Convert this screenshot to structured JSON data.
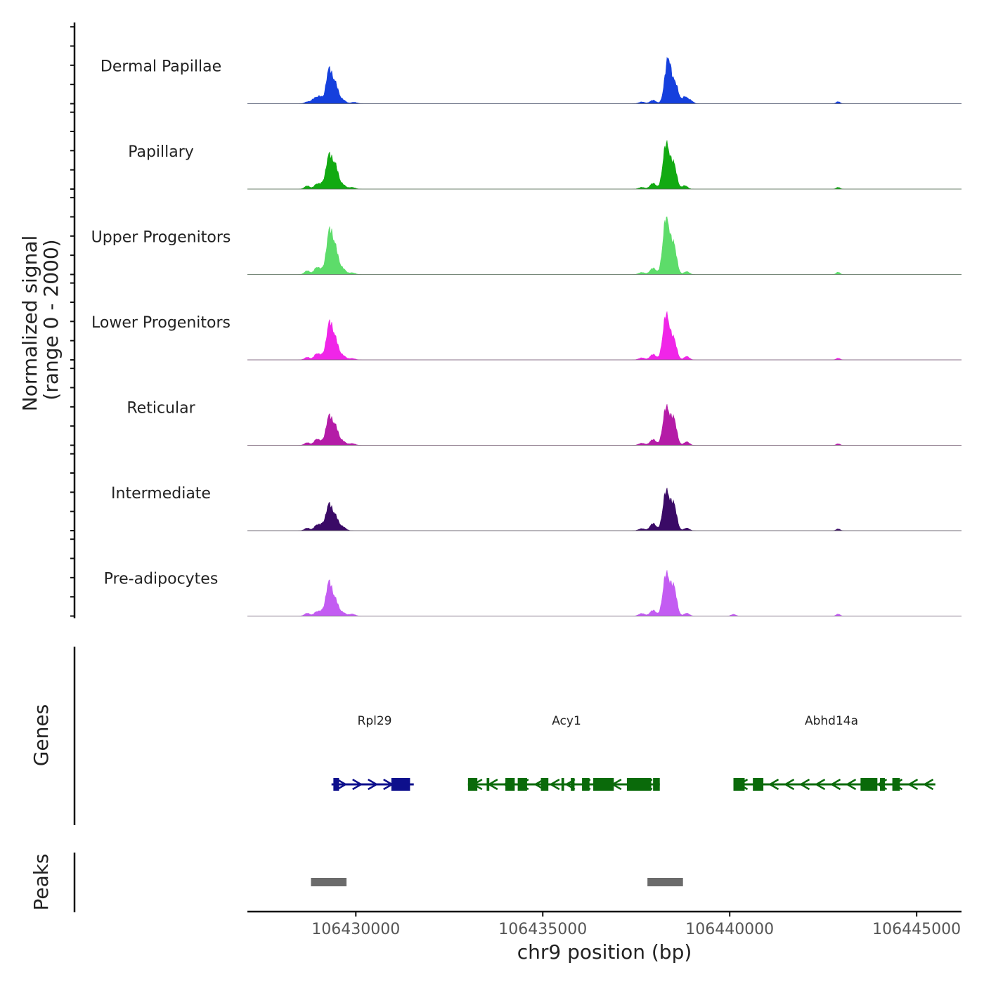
{
  "chart_data": {
    "type": "area",
    "title": "",
    "xlabel": "chr9 position (bp)",
    "ylabel": "Normalized signal",
    "ylabel_range": "(range 0 - 2000)",
    "xlim": [
      106427100,
      106446200
    ],
    "ylim": [
      0,
      2000
    ],
    "x_ticks": [
      106430000,
      106435000,
      106440000,
      106445000
    ],
    "x_tick_labels": [
      "106430000",
      "106435000",
      "106440000",
      "106445000"
    ],
    "panel_labels": {
      "genes": "Genes",
      "peaks": "Peaks"
    },
    "series": [
      {
        "name": "Dermal Papillae",
        "color": "#1540dd",
        "peaks": [
          {
            "x": 106428700,
            "h": 60,
            "w": 70
          },
          {
            "x": 106428900,
            "h": 180,
            "w": 80
          },
          {
            "x": 106429050,
            "h": 220,
            "w": 70
          },
          {
            "x": 106429280,
            "h": 1150,
            "w": 75
          },
          {
            "x": 106429450,
            "h": 680,
            "w": 80
          },
          {
            "x": 106429650,
            "h": 130,
            "w": 80
          },
          {
            "x": 106429950,
            "h": 50,
            "w": 80
          },
          {
            "x": 106437650,
            "h": 60,
            "w": 80
          },
          {
            "x": 106437950,
            "h": 120,
            "w": 80
          },
          {
            "x": 106438350,
            "h": 1550,
            "w": 85
          },
          {
            "x": 106438550,
            "h": 650,
            "w": 80
          },
          {
            "x": 106438800,
            "h": 230,
            "w": 70
          },
          {
            "x": 106438950,
            "h": 110,
            "w": 70
          },
          {
            "x": 106442900,
            "h": 70,
            "w": 50
          }
        ]
      },
      {
        "name": "Papillary",
        "color": "#12aa12",
        "peaks": [
          {
            "x": 106428700,
            "h": 110,
            "w": 70
          },
          {
            "x": 106428950,
            "h": 160,
            "w": 70
          },
          {
            "x": 106429100,
            "h": 170,
            "w": 70
          },
          {
            "x": 106429280,
            "h": 1120,
            "w": 75
          },
          {
            "x": 106429450,
            "h": 800,
            "w": 80
          },
          {
            "x": 106429650,
            "h": 150,
            "w": 80
          },
          {
            "x": 106429900,
            "h": 60,
            "w": 80
          },
          {
            "x": 106437650,
            "h": 60,
            "w": 80
          },
          {
            "x": 106437950,
            "h": 200,
            "w": 80
          },
          {
            "x": 106438300,
            "h": 1550,
            "w": 85
          },
          {
            "x": 106438500,
            "h": 850,
            "w": 80
          },
          {
            "x": 106438800,
            "h": 120,
            "w": 70
          },
          {
            "x": 106442900,
            "h": 60,
            "w": 50
          }
        ]
      },
      {
        "name": "Upper Progenitors",
        "color": "#5ddc6a",
        "peaks": [
          {
            "x": 106428700,
            "h": 130,
            "w": 70
          },
          {
            "x": 106428950,
            "h": 230,
            "w": 70
          },
          {
            "x": 106429100,
            "h": 160,
            "w": 70
          },
          {
            "x": 106429290,
            "h": 1440,
            "w": 75
          },
          {
            "x": 106429450,
            "h": 900,
            "w": 80
          },
          {
            "x": 106429650,
            "h": 200,
            "w": 80
          },
          {
            "x": 106429900,
            "h": 60,
            "w": 80
          },
          {
            "x": 106437650,
            "h": 70,
            "w": 80
          },
          {
            "x": 106437950,
            "h": 220,
            "w": 80
          },
          {
            "x": 106438300,
            "h": 1950,
            "w": 85
          },
          {
            "x": 106438500,
            "h": 1000,
            "w": 80
          },
          {
            "x": 106438850,
            "h": 100,
            "w": 70
          },
          {
            "x": 106442900,
            "h": 80,
            "w": 50
          }
        ]
      },
      {
        "name": "Lower Progenitors",
        "color": "#f025e8",
        "peaks": [
          {
            "x": 106428700,
            "h": 90,
            "w": 70
          },
          {
            "x": 106428950,
            "h": 200,
            "w": 70
          },
          {
            "x": 106429100,
            "h": 150,
            "w": 70
          },
          {
            "x": 106429290,
            "h": 1220,
            "w": 75
          },
          {
            "x": 106429450,
            "h": 700,
            "w": 80
          },
          {
            "x": 106429650,
            "h": 150,
            "w": 80
          },
          {
            "x": 106429900,
            "h": 50,
            "w": 80
          },
          {
            "x": 106437650,
            "h": 70,
            "w": 80
          },
          {
            "x": 106437950,
            "h": 190,
            "w": 80
          },
          {
            "x": 106438300,
            "h": 1550,
            "w": 85
          },
          {
            "x": 106438500,
            "h": 700,
            "w": 80
          },
          {
            "x": 106438850,
            "h": 120,
            "w": 70
          },
          {
            "x": 106442900,
            "h": 60,
            "w": 50
          }
        ]
      },
      {
        "name": "Reticular",
        "color": "#b41ca7",
        "peaks": [
          {
            "x": 106428700,
            "h": 90,
            "w": 70
          },
          {
            "x": 106428950,
            "h": 200,
            "w": 70
          },
          {
            "x": 106429100,
            "h": 120,
            "w": 70
          },
          {
            "x": 106429280,
            "h": 960,
            "w": 75
          },
          {
            "x": 106429450,
            "h": 650,
            "w": 80
          },
          {
            "x": 106429650,
            "h": 140,
            "w": 80
          },
          {
            "x": 106429900,
            "h": 60,
            "w": 80
          },
          {
            "x": 106437650,
            "h": 70,
            "w": 80
          },
          {
            "x": 106437950,
            "h": 200,
            "w": 80
          },
          {
            "x": 106438300,
            "h": 1290,
            "w": 85
          },
          {
            "x": 106438500,
            "h": 900,
            "w": 80
          },
          {
            "x": 106438850,
            "h": 120,
            "w": 70
          },
          {
            "x": 106442900,
            "h": 50,
            "w": 50
          }
        ]
      },
      {
        "name": "Intermediate",
        "color": "#3a0a66",
        "peaks": [
          {
            "x": 106428700,
            "h": 90,
            "w": 70
          },
          {
            "x": 106428950,
            "h": 180,
            "w": 70
          },
          {
            "x": 106429100,
            "h": 200,
            "w": 70
          },
          {
            "x": 106429280,
            "h": 880,
            "w": 75
          },
          {
            "x": 106429450,
            "h": 500,
            "w": 80
          },
          {
            "x": 106429650,
            "h": 130,
            "w": 80
          },
          {
            "x": 106437650,
            "h": 70,
            "w": 80
          },
          {
            "x": 106437950,
            "h": 250,
            "w": 80
          },
          {
            "x": 106438300,
            "h": 1350,
            "w": 85
          },
          {
            "x": 106438500,
            "h": 900,
            "w": 80
          },
          {
            "x": 106438850,
            "h": 90,
            "w": 70
          },
          {
            "x": 106442900,
            "h": 60,
            "w": 50
          }
        ]
      },
      {
        "name": "Pre-adipocytes",
        "color": "#c35cf2",
        "peaks": [
          {
            "x": 106428700,
            "h": 100,
            "w": 70
          },
          {
            "x": 106428950,
            "h": 140,
            "w": 70
          },
          {
            "x": 106429100,
            "h": 160,
            "w": 70
          },
          {
            "x": 106429280,
            "h": 1140,
            "w": 75
          },
          {
            "x": 106429450,
            "h": 550,
            "w": 80
          },
          {
            "x": 106429650,
            "h": 120,
            "w": 80
          },
          {
            "x": 106429900,
            "h": 70,
            "w": 80
          },
          {
            "x": 106437650,
            "h": 90,
            "w": 80
          },
          {
            "x": 106437950,
            "h": 200,
            "w": 80
          },
          {
            "x": 106438300,
            "h": 1440,
            "w": 85
          },
          {
            "x": 106438500,
            "h": 1000,
            "w": 80
          },
          {
            "x": 106438850,
            "h": 100,
            "w": 70
          },
          {
            "x": 106440100,
            "h": 60,
            "w": 60
          },
          {
            "x": 106442900,
            "h": 70,
            "w": 50
          }
        ]
      }
    ],
    "genes": [
      {
        "name": "Rpl29",
        "color": "#0d0f8c",
        "strand": "+",
        "start": 106429350,
        "end": 106431550,
        "exons": [
          [
            106429400,
            106429550
          ],
          [
            106430950,
            106431450
          ]
        ]
      },
      {
        "name": "Acy1",
        "color": "#0a6a0a",
        "strand": "-",
        "start": 106433000,
        "end": 106438130,
        "exons": [
          [
            106433000,
            106433250
          ],
          [
            106433500,
            106433570
          ],
          [
            106434000,
            106434250
          ],
          [
            106434330,
            106434580
          ],
          [
            106434950,
            106435150
          ],
          [
            106435500,
            106435570
          ],
          [
            106435750,
            106435850
          ],
          [
            106436050,
            106436250
          ],
          [
            106436350,
            106436900
          ],
          [
            106437250,
            106437900
          ],
          [
            106437950,
            106438130
          ]
        ]
      },
      {
        "name": "Abhd14a",
        "color": "#0a6a0a",
        "strand": "-",
        "start": 106440100,
        "end": 106445500,
        "exons": [
          [
            106440100,
            106440400
          ],
          [
            106440620,
            106440900
          ],
          [
            106443500,
            106443950
          ],
          [
            106444020,
            106444150
          ],
          [
            106444350,
            106444550
          ]
        ]
      }
    ],
    "peak_regions": [
      [
        106428800,
        106429750
      ],
      [
        106437800,
        106438750
      ]
    ]
  }
}
